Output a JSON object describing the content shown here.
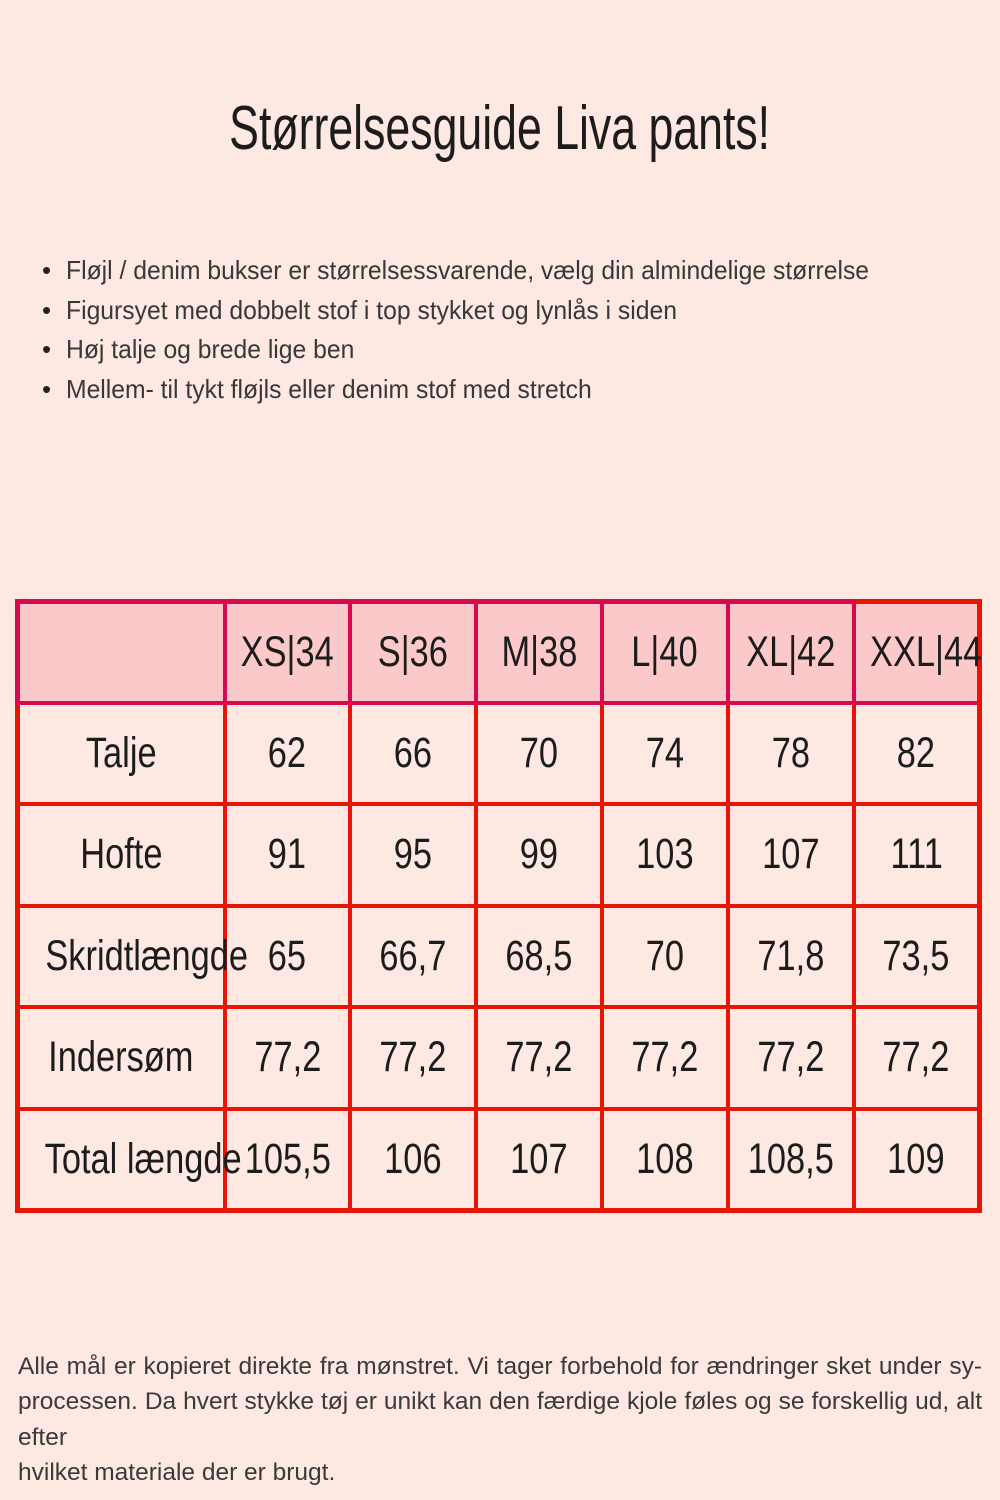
{
  "page": {
    "title": "Størrelsesguide Liva pants!",
    "bullets": [
      "Fløjl / denim bukser er størrelsessvarende, vælg din almindelige størrelse",
      "Figursyet med dobbelt stof i top stykket og lynlås i siden",
      "Høj talje og brede lige ben",
      "Mellem- til tykt fløjls eller denim stof med stretch"
    ],
    "footer_lines": [
      "Alle mål er kopieret direkte fra mønstret. Vi tager forbehold for ændringer sket under sy-",
      "processen. Da hvert stykke tøj er unikt kan den færdige kjole føles og se forskellig ud, alt efter",
      "hvilket materiale der er brugt."
    ]
  },
  "colors": {
    "background": "#fde8e2",
    "header_background": "#fbc9ca",
    "header_border": "#d9084f",
    "body_border": "#e81406",
    "text": "#1c1c1c"
  },
  "chart_data": {
    "type": "table",
    "title": "Størrelsesguide Liva pants!",
    "columns": [
      "",
      "XS|34",
      "S|36",
      "M|38",
      "L|40",
      "XL|42",
      "XXL|44"
    ],
    "rows": [
      {
        "label": "Talje",
        "values": [
          "62",
          "66",
          "70",
          "74",
          "78",
          "82"
        ]
      },
      {
        "label": "Hofte",
        "values": [
          "91",
          "95",
          "99",
          "103",
          "107",
          "111"
        ]
      },
      {
        "label": "Skridtlængde",
        "values": [
          "65",
          "66,7",
          "68,5",
          "70",
          "71,8",
          "73,5"
        ]
      },
      {
        "label": "Indersøm",
        "values": [
          "77,2",
          "77,2",
          "77,2",
          "77,2",
          "77,2",
          "77,2"
        ]
      },
      {
        "label": "Total længde",
        "values": [
          "105,5",
          "106",
          "107",
          "108",
          "108,5",
          "109"
        ]
      }
    ]
  }
}
